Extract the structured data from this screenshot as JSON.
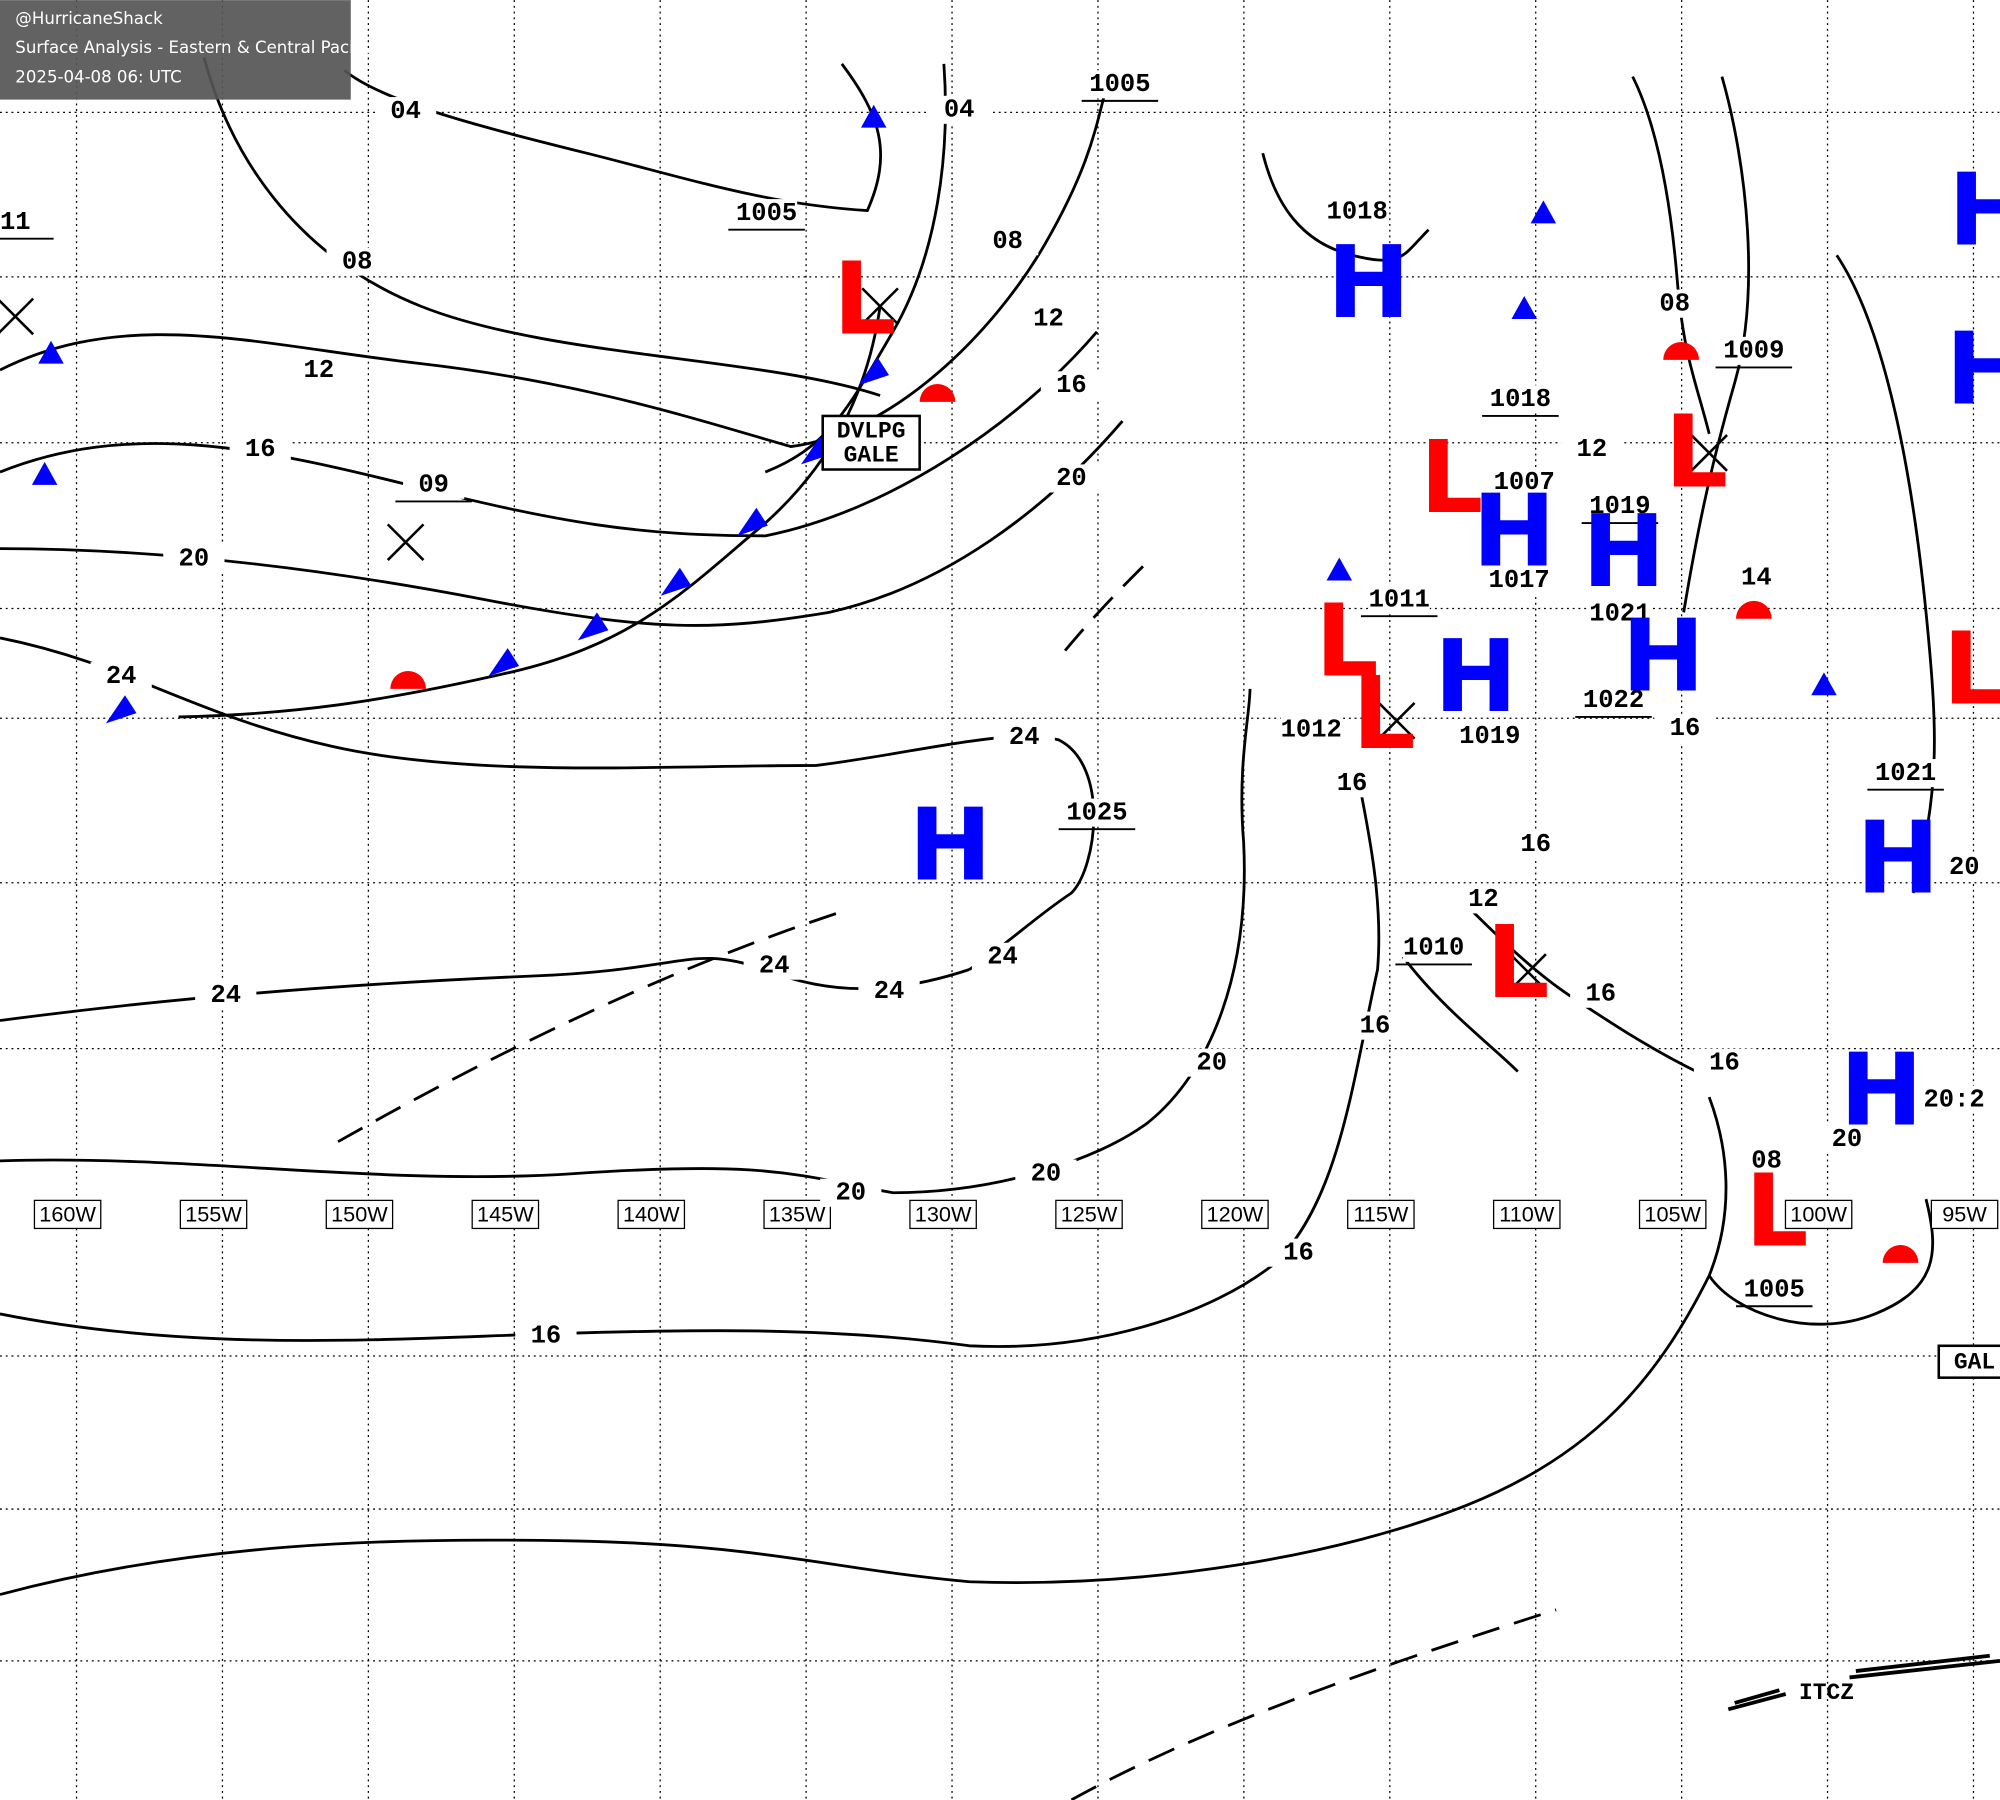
{
  "header": {
    "handle": "@HurricaneShack",
    "title": "Surface Analysis - Eastern & Central Pacific Ocean",
    "timestamp": "2025-04-08 06: UTC"
  },
  "longitude_labels": [
    "160W",
    "155W",
    "150W",
    "145W",
    "140W",
    "135W",
    "130W",
    "125W",
    "120W",
    "115W",
    "110W",
    "105W",
    "100W",
    "95W"
  ],
  "isobar_labels": [
    "04",
    "04",
    "1005",
    "1005",
    "11",
    "08",
    "08",
    "12",
    "12",
    "16",
    "16",
    "09",
    "20",
    "20",
    "24",
    "24",
    "1025",
    "24",
    "24",
    "24",
    "24",
    "20",
    "20",
    "20",
    "16",
    "16",
    "16",
    "1018",
    "08",
    "1009",
    "1018",
    "12",
    "1007",
    "1019",
    "1017",
    "1011",
    "1021",
    "1022",
    "16",
    "1019",
    "1012",
    "16",
    "16",
    "1021",
    "12",
    "1010",
    "16",
    "16",
    "20:2",
    "1005",
    "14",
    "20",
    "20",
    "08"
  ],
  "pressure_systems": [
    {
      "symbol": "L",
      "color": "#ff0000"
    },
    {
      "symbol": "H",
      "color": "#0000ff"
    },
    {
      "symbol": "H",
      "color": "#0000ff"
    },
    {
      "symbol": "L",
      "color": "#ff0000"
    },
    {
      "symbol": "H",
      "color": "#0000ff"
    },
    {
      "symbol": "H",
      "color": "#0000ff"
    },
    {
      "symbol": "H",
      "color": "#0000ff"
    },
    {
      "symbol": "H",
      "color": "#0000ff"
    },
    {
      "symbol": "L",
      "color": "#ff0000"
    },
    {
      "symbol": "L",
      "color": "#ff0000"
    },
    {
      "symbol": "L",
      "color": "#ff0000"
    },
    {
      "symbol": "L",
      "color": "#ff0000"
    },
    {
      "symbol": "H",
      "color": "#0000ff"
    },
    {
      "symbol": "H",
      "color": "#0000ff"
    },
    {
      "symbol": "L",
      "color": "#ff0000"
    },
    {
      "symbol": "L",
      "color": "#ff0000"
    },
    {
      "symbol": "H",
      "color": "#0000ff"
    },
    {
      "symbol": "H",
      "color": "#0000ff"
    }
  ],
  "gale_box": [
    "DVLPG",
    "GALE"
  ],
  "gale_box_east": "GAL",
  "itcz": "ITCZ"
}
